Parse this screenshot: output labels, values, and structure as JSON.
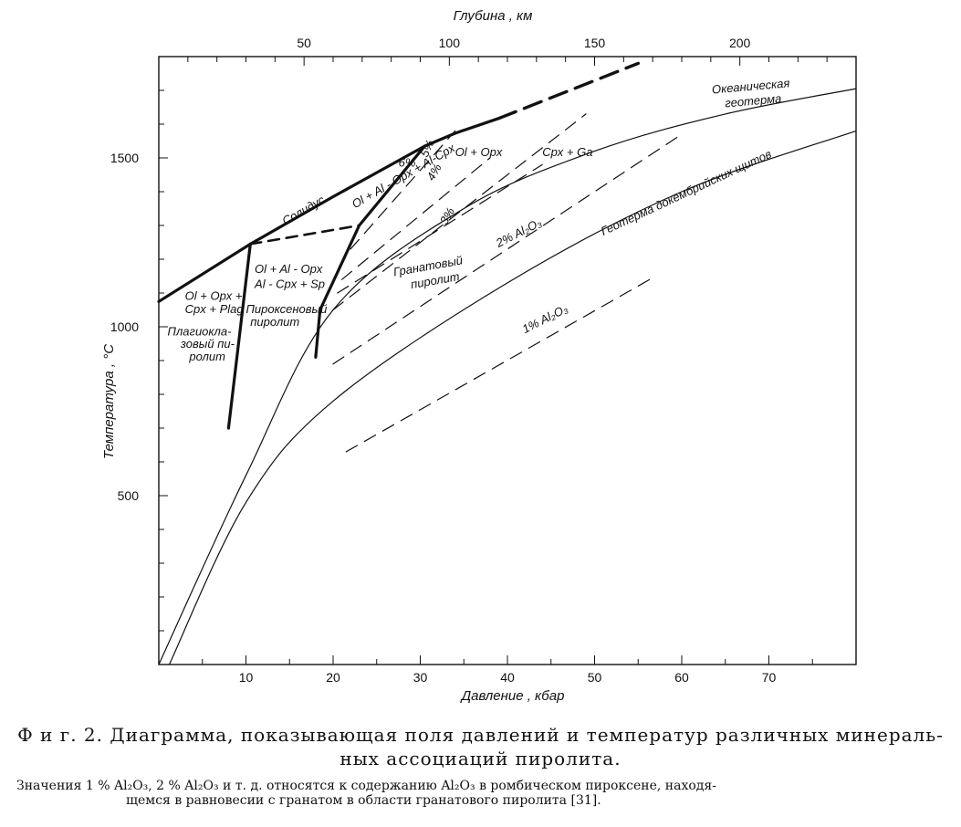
{
  "chart_data": {
    "type": "line",
    "xlabel": "Давление , кбар",
    "ylabel": "Температура , °C",
    "x2label": "Глубина , км",
    "xlim": [
      0,
      80
    ],
    "ylim": [
      0,
      1800
    ],
    "x2lim": [
      0,
      240
    ],
    "x_ticks": [
      10,
      20,
      30,
      40,
      50,
      60,
      70
    ],
    "x_minor_step": 5,
    "y_ticks": [
      500,
      1000,
      1500
    ],
    "y_minor_step": 100,
    "x2_ticks": [
      50,
      100,
      150,
      200
    ],
    "x2_minor_step": 10,
    "grid": false,
    "series": [
      {
        "name": "Солидус",
        "style": "thick",
        "points": [
          [
            0,
            1075
          ],
          [
            10.5,
            1245
          ],
          [
            20,
            1385
          ],
          [
            30.5,
            1535
          ],
          [
            34,
            1573
          ],
          [
            39,
            1617
          ]
        ]
      },
      {
        "style": "thick-dashed",
        "points": [
          [
            39,
            1617
          ],
          [
            55,
            1780
          ]
        ]
      },
      {
        "style": "dashed-thick",
        "points": [
          [
            10.5,
            1245
          ],
          [
            23,
            1300
          ]
        ]
      },
      {
        "style": "thick",
        "points": [
          [
            10.5,
            1245
          ],
          [
            8,
            700
          ]
        ]
      },
      {
        "style": "thick",
        "points": [
          [
            30.5,
            1535
          ],
          [
            23,
            1300
          ],
          [
            18.5,
            1050
          ],
          [
            18,
            910
          ]
        ]
      },
      {
        "name": "Океаническая геотерма",
        "style": "thin",
        "points": [
          [
            0,
            0
          ],
          [
            10,
            560
          ],
          [
            20,
            1050
          ],
          [
            35,
            1350
          ],
          [
            50,
            1520
          ],
          [
            65,
            1630
          ],
          [
            80,
            1705
          ]
        ]
      },
      {
        "name": "Геотерма докембрийских щитов",
        "style": "thin",
        "points": [
          [
            1.2,
            0
          ],
          [
            10,
            480
          ],
          [
            20,
            780
          ],
          [
            40,
            1130
          ],
          [
            60,
            1400
          ],
          [
            80,
            1580
          ]
        ]
      },
      {
        "name": "6%",
        "style": "dashed",
        "points": [
          [
            22,
            1230
          ],
          [
            34,
            1580
          ]
        ]
      },
      {
        "name": "5%",
        "style": "dashed",
        "points": [
          [
            21,
            1140
          ],
          [
            38,
            1500
          ]
        ]
      },
      {
        "name": "4%",
        "style": "dashed",
        "points": [
          [
            20.5,
            1100
          ],
          [
            44,
            1480
          ]
        ]
      },
      {
        "name": "3%",
        "style": "dashed",
        "points": [
          [
            20,
            1050
          ],
          [
            49,
            1630
          ]
        ]
      },
      {
        "name": "2% Al2O3",
        "style": "dashed",
        "points": [
          [
            20,
            890
          ],
          [
            60,
            1570
          ]
        ]
      },
      {
        "name": "1% Al2O3",
        "style": "dashed",
        "points": [
          [
            21.5,
            630
          ],
          [
            57,
            1150
          ]
        ]
      }
    ],
    "annotations": [
      {
        "text": "Солидус",
        "x": 14.5,
        "y": 1300,
        "angle": -30
      },
      {
        "text": "Ol + Al - Opx + Al-Cpx",
        "x": 22.5,
        "y": 1350,
        "angle": -30
      },
      {
        "text": "6%",
        "x": 27.5,
        "y": 1475,
        "angle": 0
      },
      {
        "text": "5%",
        "x": 30.8,
        "y": 1500,
        "angle": -65
      },
      {
        "text": "4%",
        "x": 31.5,
        "y": 1430,
        "angle": -60
      },
      {
        "text": "3%",
        "x": 33,
        "y": 1300,
        "angle": -60
      },
      {
        "text": "Ol + Opx",
        "x": 34,
        "y": 1505,
        "angle": 0
      },
      {
        "text": "Cpx + Ga",
        "x": 44,
        "y": 1505,
        "angle": 0
      },
      {
        "text": "Ol + Opx +",
        "x": 3,
        "y": 1080,
        "angle": 0
      },
      {
        "text": "Cpx + Plag",
        "x": 3,
        "y": 1040,
        "angle": 0
      },
      {
        "text": "Плагиокла-",
        "x": 1,
        "y": 975,
        "angle": 0
      },
      {
        "text": "зовый пи-",
        "x": 2.5,
        "y": 938,
        "angle": 0
      },
      {
        "text": "ролит",
        "x": 3.5,
        "y": 900,
        "angle": 0
      },
      {
        "text": "Ol + Al - Opx",
        "x": 11,
        "y": 1160,
        "angle": 0
      },
      {
        "text": "Al - Cpx + Sp",
        "x": 11,
        "y": 1115,
        "angle": 0
      },
      {
        "text": "Пироксеновый",
        "x": 10,
        "y": 1040,
        "angle": 0
      },
      {
        "text": "пиролит",
        "x": 10.5,
        "y": 1003,
        "angle": 0
      },
      {
        "text": "Гранатовый",
        "x": 27,
        "y": 1150,
        "angle": -10
      },
      {
        "text": "пиролит",
        "x": 29,
        "y": 1113,
        "angle": -10
      },
      {
        "text": "2% Al₂O₃",
        "x": 39,
        "y": 1235,
        "angle": -27
      },
      {
        "text": "1% Al₂O₃",
        "x": 42,
        "y": 980,
        "angle": -27
      },
      {
        "text": "Океаническая",
        "x": 63.5,
        "y": 1690,
        "angle": -5
      },
      {
        "text": "геотерма",
        "x": 65,
        "y": 1650,
        "angle": -5
      },
      {
        "text": "Геотерма докембрийских щитов",
        "x": 51,
        "y": 1270,
        "angle": -25
      }
    ]
  },
  "caption": {
    "title_line1": "Ф и г.  2.  Диаграмма,  показывающая  поля  давлений  и  температур  различных  минераль-",
    "title_line2": "ных  ассоциаций  пиролита.",
    "note_line1": "Значения 1 % Al₂O₃, 2 % Al₂O₃ и т. д. относятся к содержанию Al₂O₃ в ромбическом пироксене, находя-",
    "note_line2": "щемся в равновесии с гранатом в области гранатового пиролита [31]."
  }
}
